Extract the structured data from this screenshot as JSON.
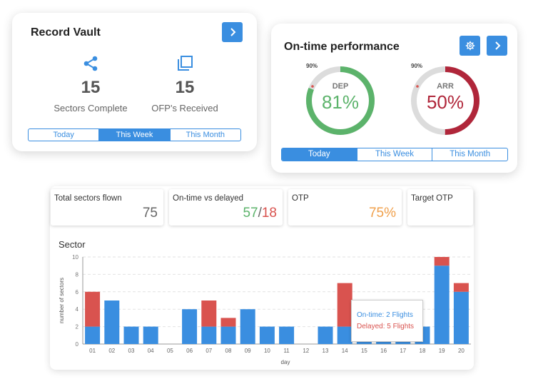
{
  "record_vault": {
    "title": "Record Vault",
    "stats": [
      {
        "value": "15",
        "label": "Sectors Complete",
        "icon": "share-icon"
      },
      {
        "value": "15",
        "label": "OFP's Received",
        "icon": "copy-icon"
      }
    ],
    "tabs": [
      "Today",
      "This Week",
      "This Month"
    ],
    "active_tab": "This Week"
  },
  "otp_card": {
    "title": "On-time performance",
    "gauges": [
      {
        "label": "DEP",
        "value": "81%",
        "fraction": 0.81,
        "target": "90%",
        "color": "#5cb36b"
      },
      {
        "label": "ARR",
        "value": "50%",
        "fraction": 0.5,
        "target": "90%",
        "color": "#b0263a"
      }
    ],
    "tabs": [
      "Today",
      "This Week",
      "This Month"
    ],
    "active_tab": "Today"
  },
  "kpis": {
    "total": {
      "label": "Total sectors flown",
      "value": "75"
    },
    "ontime": {
      "label": "On-time vs delayed",
      "ontime": "57",
      "sep": "/",
      "delayed": "18"
    },
    "otp": {
      "label": "OTP",
      "value": "75%"
    },
    "target": {
      "label": "Target OTP"
    }
  },
  "colors": {
    "blue": "#3a8ee0",
    "red": "#d9534f",
    "green": "#5cb36b",
    "orange": "#f0a04b"
  },
  "tooltip": {
    "ontime": "On-time: 2 Flights",
    "delayed": "Delayed: 5 Flights"
  },
  "chart_data": {
    "type": "bar",
    "title": "Sector",
    "xlabel": "day",
    "ylabel": "number of sectors",
    "ylim": [
      0,
      10
    ],
    "yticks": [
      0,
      2,
      4,
      6,
      8,
      10
    ],
    "categories": [
      "01",
      "02",
      "03",
      "04",
      "05",
      "06",
      "07",
      "08",
      "09",
      "10",
      "11",
      "12",
      "13",
      "14",
      "15",
      "16",
      "17",
      "18",
      "19",
      "20"
    ],
    "series": [
      {
        "name": "On-time",
        "values": [
          2,
          5,
          2,
          2,
          0,
          4,
          2,
          2,
          4,
          2,
          2,
          0,
          2,
          2,
          2,
          2,
          2,
          2,
          9,
          6
        ]
      },
      {
        "name": "Delayed",
        "values": [
          4,
          0,
          0,
          0,
          0,
          0,
          3,
          1,
          0,
          0,
          0,
          0,
          0,
          5,
          0,
          0,
          0,
          0,
          1,
          1
        ]
      }
    ],
    "stacked": true,
    "grid": true
  }
}
